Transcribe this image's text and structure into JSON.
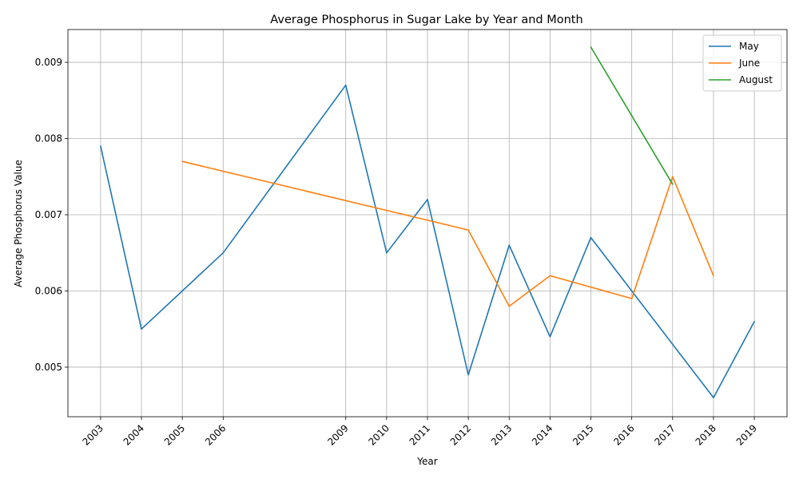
{
  "chart_data": {
    "type": "line",
    "title": "Average Phosphorus in Sugar Lake by Year and Month",
    "xlabel": "Year",
    "ylabel": "Average Phosphorus Value",
    "x_ticks": [
      2003,
      2004,
      2005,
      2006,
      2009,
      2010,
      2011,
      2012,
      2013,
      2014,
      2015,
      2016,
      2017,
      2018,
      2019
    ],
    "y_ticks": [
      "0.005",
      "0.006",
      "0.007",
      "0.008",
      "0.009"
    ],
    "xlim": [
      2002.2,
      2019.8
    ],
    "ylim": [
      0.00435,
      0.00943
    ],
    "grid": true,
    "legend_position": "top-right",
    "series": [
      {
        "name": "May",
        "color": "#1f77b4",
        "points": [
          [
            2003,
            0.0079
          ],
          [
            2004,
            0.0055
          ],
          [
            2006,
            0.0065
          ],
          [
            2009,
            0.0087
          ],
          [
            2010,
            0.0065
          ],
          [
            2011,
            0.0072
          ],
          [
            2012,
            0.0049
          ],
          [
            2013,
            0.0066
          ],
          [
            2014,
            0.0054
          ],
          [
            2015,
            0.0067
          ],
          [
            2016,
            0.006
          ],
          [
            2018,
            0.0046
          ],
          [
            2019,
            0.0056
          ]
        ]
      },
      {
        "name": "June",
        "color": "#ff7f0e",
        "points": [
          [
            2005,
            0.0077
          ],
          [
            2012,
            0.0068
          ],
          [
            2013,
            0.0058
          ],
          [
            2014,
            0.0062
          ],
          [
            2016,
            0.0059
          ],
          [
            2017,
            0.0075
          ],
          [
            2018,
            0.0062
          ]
        ]
      },
      {
        "name": "August",
        "color": "#2ca02c",
        "points": [
          [
            2015,
            0.0092
          ],
          [
            2017,
            0.0074
          ]
        ]
      }
    ]
  }
}
